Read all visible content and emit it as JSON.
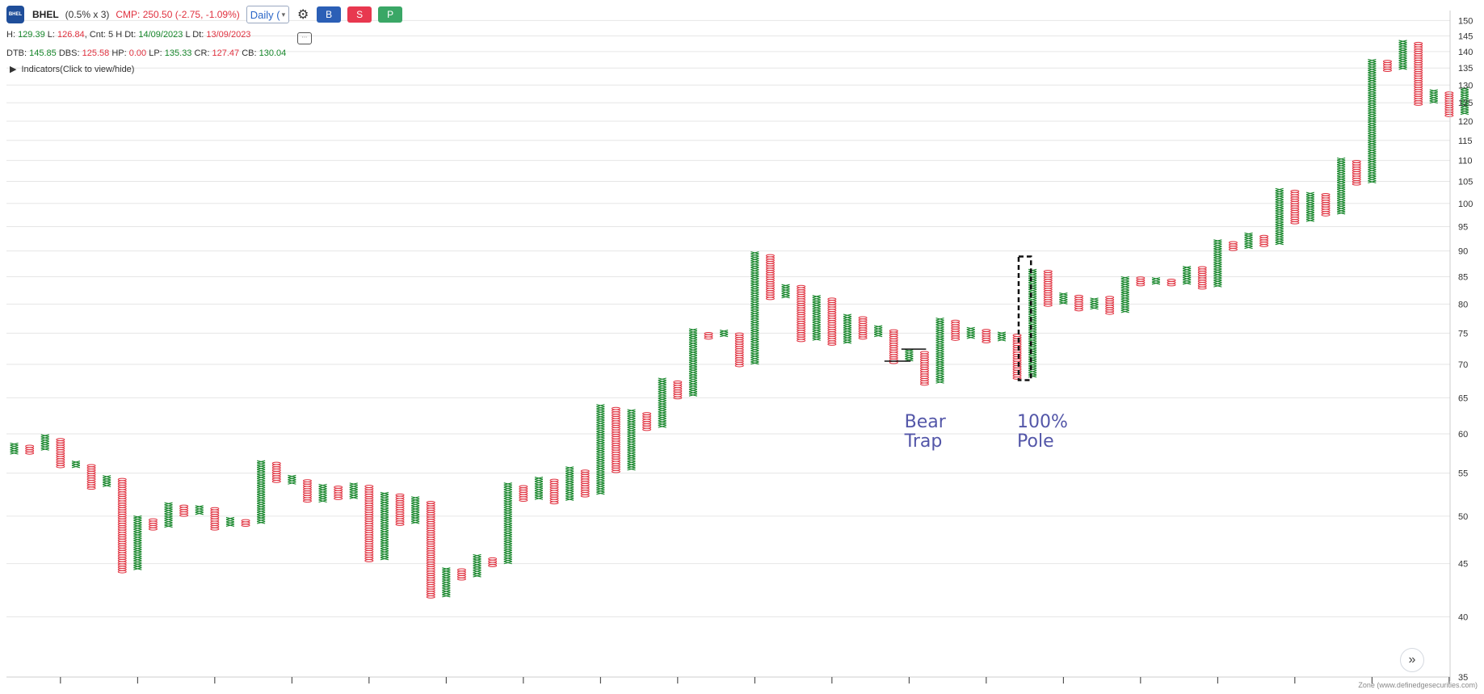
{
  "toolbar": {
    "logo_text": "BHEL",
    "symbol": "BHEL",
    "box_info": "(0.5% x 3)",
    "cmp": "CMP: 250.50 (-2.75, -1.09%)",
    "interval": "Daily (",
    "buy_label": "B",
    "sell_label": "S",
    "p_label": "P",
    "colors": {
      "buy": "#2b5fb6",
      "sell": "#e8384f",
      "p": "#3aa766"
    }
  },
  "info": {
    "h_label": "H:",
    "h_value": "129.39",
    "l_label": "L:",
    "l_value": "126.84",
    "cnt": "Cnt: 5",
    "hdt_label": "H Dt:",
    "hdt_value": "14/09/2023",
    "ldt_label": "L Dt:",
    "ldt_value": "13/09/2023",
    "dtb_label": "DTB:",
    "dtb_value": "145.85",
    "dbs_label": "DBS:",
    "dbs_value": "125.58",
    "hp_label": "HP:",
    "hp_value": "0.00",
    "lp_label": "LP:",
    "lp_value": "135.33",
    "cr_label": "CR:",
    "cr_value": "127.47",
    "cb_label": "CB:",
    "cb_value": "130.04"
  },
  "indicators_label": "Indicators(Click to view/hide)",
  "footer": "Zone (www.definedgesecurities.com)",
  "chart_data": {
    "type": "point-and-figure",
    "box_size_percent": 0.5,
    "reversal": 3,
    "y_scale": "log",
    "ylim": [
      35,
      152
    ],
    "y_ticks": [
      35,
      40,
      45,
      50,
      55,
      60,
      65,
      70,
      75,
      80,
      85,
      90,
      95,
      100,
      105,
      110,
      115,
      120,
      125,
      130,
      135,
      140,
      145,
      150
    ],
    "colors": {
      "x": "#16862a",
      "o": "#e0313f",
      "grid": "#e6e6e6",
      "annotation": "#5356a8"
    },
    "columns": [
      {
        "type": "X",
        "low": 57.5,
        "high": 58.8
      },
      {
        "type": "O",
        "low": 57.5,
        "high": 58.5
      },
      {
        "type": "X",
        "low": 58.0,
        "high": 60.0
      },
      {
        "type": "O",
        "low": 55.8,
        "high": 59.5
      },
      {
        "type": "X",
        "low": 55.8,
        "high": 56.5
      },
      {
        "type": "O",
        "low": 53.2,
        "high": 56.0
      },
      {
        "type": "X",
        "low": 53.5,
        "high": 54.8
      },
      {
        "type": "O",
        "low": 44.2,
        "high": 54.3
      },
      {
        "type": "X",
        "low": 44.5,
        "high": 50.0
      },
      {
        "type": "O",
        "low": 48.6,
        "high": 49.6
      },
      {
        "type": "X",
        "low": 48.9,
        "high": 51.6
      },
      {
        "type": "O",
        "low": 50.1,
        "high": 51.2
      },
      {
        "type": "X",
        "low": 50.3,
        "high": 51.2
      },
      {
        "type": "O",
        "low": 48.6,
        "high": 51.0
      },
      {
        "type": "X",
        "low": 49.0,
        "high": 49.9
      },
      {
        "type": "O",
        "low": 49.0,
        "high": 49.6
      },
      {
        "type": "X",
        "low": 49.3,
        "high": 56.5
      },
      {
        "type": "O",
        "low": 54.0,
        "high": 56.2
      },
      {
        "type": "X",
        "low": 53.8,
        "high": 54.7
      },
      {
        "type": "O",
        "low": 51.7,
        "high": 54.3
      },
      {
        "type": "X",
        "low": 51.7,
        "high": 53.7
      },
      {
        "type": "O",
        "low": 52.0,
        "high": 53.5
      },
      {
        "type": "X",
        "low": 52.1,
        "high": 53.9
      },
      {
        "type": "O",
        "low": 45.3,
        "high": 53.4
      },
      {
        "type": "X",
        "low": 45.5,
        "high": 52.8
      },
      {
        "type": "O",
        "low": 49.1,
        "high": 52.5
      },
      {
        "type": "X",
        "low": 49.3,
        "high": 52.1
      },
      {
        "type": "O",
        "low": 41.8,
        "high": 51.6
      },
      {
        "type": "X",
        "low": 41.9,
        "high": 44.5
      },
      {
        "type": "O",
        "low": 43.5,
        "high": 44.4
      },
      {
        "type": "X",
        "low": 43.8,
        "high": 46.0
      },
      {
        "type": "O",
        "low": 44.8,
        "high": 45.6
      },
      {
        "type": "X",
        "low": 45.1,
        "high": 53.7
      },
      {
        "type": "O",
        "low": 51.8,
        "high": 53.4
      },
      {
        "type": "X",
        "low": 52.0,
        "high": 54.6
      },
      {
        "type": "O",
        "low": 51.5,
        "high": 54.2
      },
      {
        "type": "X",
        "low": 51.9,
        "high": 55.8
      },
      {
        "type": "O",
        "low": 52.3,
        "high": 55.3
      },
      {
        "type": "X",
        "low": 52.6,
        "high": 64.0
      },
      {
        "type": "O",
        "low": 55.2,
        "high": 63.5
      },
      {
        "type": "X",
        "low": 55.5,
        "high": 63.3
      },
      {
        "type": "O",
        "low": 60.6,
        "high": 62.9
      },
      {
        "type": "X",
        "low": 61.0,
        "high": 67.8
      },
      {
        "type": "O",
        "low": 65.0,
        "high": 67.4
      },
      {
        "type": "X",
        "low": 65.4,
        "high": 75.6
      },
      {
        "type": "O",
        "low": 74.2,
        "high": 75.2
      },
      {
        "type": "X",
        "low": 74.6,
        "high": 75.5
      },
      {
        "type": "O",
        "low": 69.8,
        "high": 75.1
      },
      {
        "type": "X",
        "low": 70.2,
        "high": 89.8
      },
      {
        "type": "O",
        "low": 81.0,
        "high": 89.4
      },
      {
        "type": "X",
        "low": 81.3,
        "high": 83.7
      },
      {
        "type": "O",
        "low": 73.8,
        "high": 83.2
      },
      {
        "type": "X",
        "low": 74.0,
        "high": 81.5
      },
      {
        "type": "O",
        "low": 73.2,
        "high": 81.0
      },
      {
        "type": "X",
        "low": 73.5,
        "high": 78.1
      },
      {
        "type": "O",
        "low": 74.2,
        "high": 77.7
      },
      {
        "type": "X",
        "low": 74.6,
        "high": 76.1
      },
      {
        "type": "O",
        "low": 70.3,
        "high": 75.6
      },
      {
        "type": "X",
        "low": 70.7,
        "high": 72.4
      },
      {
        "type": "O",
        "low": 67.0,
        "high": 72.0
      },
      {
        "type": "X",
        "low": 67.3,
        "high": 77.6
      },
      {
        "type": "O",
        "low": 74.0,
        "high": 77.3
      },
      {
        "type": "X",
        "low": 74.3,
        "high": 76.1
      },
      {
        "type": "O",
        "low": 73.6,
        "high": 75.6
      },
      {
        "type": "X",
        "low": 73.9,
        "high": 75.2
      },
      {
        "type": "O",
        "low": 67.9,
        "high": 74.9
      },
      {
        "type": "X",
        "low": 68.2,
        "high": 86.4
      },
      {
        "type": "O",
        "low": 79.8,
        "high": 86.0
      },
      {
        "type": "X",
        "low": 80.2,
        "high": 82.2
      },
      {
        "type": "O",
        "low": 79.0,
        "high": 81.7
      },
      {
        "type": "X",
        "low": 79.3,
        "high": 81.0
      },
      {
        "type": "O",
        "low": 78.4,
        "high": 81.5
      },
      {
        "type": "X",
        "low": 78.7,
        "high": 85.2
      },
      {
        "type": "O",
        "low": 83.5,
        "high": 84.8
      },
      {
        "type": "X",
        "low": 83.8,
        "high": 85.0
      },
      {
        "type": "O",
        "low": 83.5,
        "high": 84.6
      },
      {
        "type": "X",
        "low": 83.8,
        "high": 87.2
      },
      {
        "type": "O",
        "low": 82.9,
        "high": 86.8
      },
      {
        "type": "X",
        "low": 83.3,
        "high": 92.1
      },
      {
        "type": "O",
        "low": 90.3,
        "high": 91.7
      },
      {
        "type": "X",
        "low": 90.7,
        "high": 93.5
      },
      {
        "type": "O",
        "low": 91.1,
        "high": 93.0
      },
      {
        "type": "X",
        "low": 91.5,
        "high": 103.6
      },
      {
        "type": "O",
        "low": 95.8,
        "high": 103.1
      },
      {
        "type": "X",
        "low": 96.3,
        "high": 102.5
      },
      {
        "type": "O",
        "low": 97.5,
        "high": 102.0
      },
      {
        "type": "X",
        "low": 97.9,
        "high": 110.7
      },
      {
        "type": "O",
        "low": 104.4,
        "high": 110.2
      },
      {
        "type": "X",
        "low": 104.9,
        "high": 137.5
      },
      {
        "type": "O",
        "low": 134.3,
        "high": 137.0
      },
      {
        "type": "X",
        "low": 134.9,
        "high": 143.9
      },
      {
        "type": "O",
        "low": 124.6,
        "high": 143.2
      },
      {
        "type": "X",
        "low": 125.2,
        "high": 128.4
      },
      {
        "type": "O",
        "low": 121.5,
        "high": 127.8
      },
      {
        "type": "X",
        "low": 122.1,
        "high": 129.4
      }
    ],
    "annotations": [
      {
        "label_line1": "Bear",
        "label_line2": "Trap",
        "x_col": 58.2,
        "y": 58.5
      },
      {
        "label_line1": "100%",
        "label_line2": "Pole",
        "x_col": 65.5,
        "y": 58.5
      }
    ],
    "pole_box": {
      "col_start": 65.6,
      "col_end": 66.4,
      "low": 67.6,
      "high": 88.9
    },
    "bear_trap_lines": [
      {
        "col_start": 56.9,
        "col_end": 58.6,
        "y": 70.5
      },
      {
        "col_start": 58.0,
        "col_end": 59.6,
        "y": 72.4
      }
    ]
  }
}
